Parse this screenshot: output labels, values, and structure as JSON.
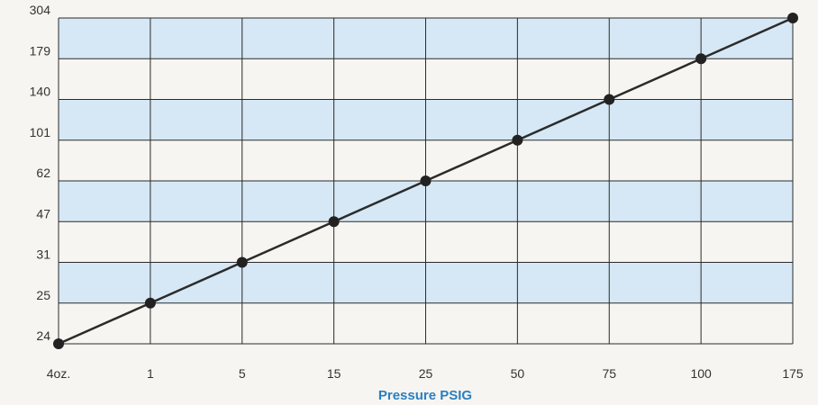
{
  "chart_data": {
    "type": "line",
    "x": [
      "4oz.",
      "1",
      "5",
      "15",
      "25",
      "50",
      "75",
      "100",
      "175"
    ],
    "y": [
      24,
      25,
      31,
      47,
      62,
      101,
      140,
      179,
      304
    ],
    "y_ticks": [
      "24",
      "25",
      "31",
      "47",
      "62",
      "101",
      "140",
      "179",
      "304"
    ],
    "xlabel": "Pressure PSIG",
    "ylabel": "",
    "title": "",
    "grid": true,
    "markers": true,
    "colors": {
      "band": "#d6e8f5",
      "background": "#f6f5f1",
      "grid": "#2a2a2a",
      "line": "#2b2b2b",
      "marker": "#222222",
      "xlabel": "#2a7fc1"
    }
  }
}
